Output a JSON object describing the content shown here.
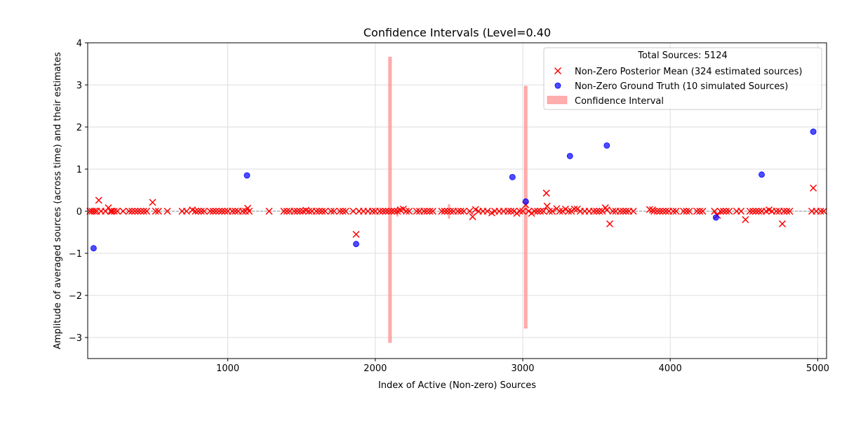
{
  "chart_data": {
    "type": "scatter",
    "title": "Confidence Intervals (Level=0.40",
    "xlabel": "Index of Active (Non-zero) Sources",
    "ylabel": "Amplitude of averaged sources (across time) and their estimates",
    "xlim": [
      50,
      5060
    ],
    "ylim": [
      -3.5,
      4.0
    ],
    "xticks": [
      1000,
      2000,
      3000,
      4000,
      5000
    ],
    "yticks": [
      -3,
      -2,
      -1,
      0,
      1,
      2,
      3,
      4
    ],
    "xtick_labels": [
      "1000",
      "2000",
      "3000",
      "4000",
      "5000"
    ],
    "ytick_labels": [
      "−3",
      "−2",
      "−1",
      "0",
      "1",
      "2",
      "3",
      "4"
    ],
    "grid": true,
    "zero_line": true,
    "legend": {
      "title": "Total Sources: 5124",
      "placement": "top-right",
      "entries": [
        {
          "label": "Non-Zero Posterior Mean (324 estimated sources)",
          "marker": "x",
          "color": "#ff0000"
        },
        {
          "label": "Non-Zero Ground Truth (10 simulated Sources)",
          "marker": "circle",
          "color": "#0000ff"
        },
        {
          "label": "Confidence Interval",
          "marker": "patch",
          "color": "#ff9999"
        }
      ]
    },
    "series": [
      {
        "name": "Non-Zero Posterior Mean (324 estimated sources)",
        "marker": "x",
        "color": "#ff0000",
        "points": [
          [
            65,
            0
          ],
          [
            80,
            0
          ],
          [
            95,
            0
          ],
          [
            110,
            0
          ],
          [
            125,
            0.26
          ],
          [
            140,
            0
          ],
          [
            170,
            0
          ],
          [
            190,
            0.08
          ],
          [
            205,
            0
          ],
          [
            215,
            0
          ],
          [
            230,
            0
          ],
          [
            250,
            0
          ],
          [
            290,
            0
          ],
          [
            330,
            0
          ],
          [
            350,
            0
          ],
          [
            370,
            0
          ],
          [
            390,
            0
          ],
          [
            410,
            0
          ],
          [
            430,
            0
          ],
          [
            450,
            0
          ],
          [
            490,
            0.21
          ],
          [
            510,
            0
          ],
          [
            530,
            0
          ],
          [
            590,
            0
          ],
          [
            690,
            0
          ],
          [
            720,
            0
          ],
          [
            760,
            0.03
          ],
          [
            780,
            0
          ],
          [
            800,
            0
          ],
          [
            820,
            0
          ],
          [
            840,
            0
          ],
          [
            880,
            0
          ],
          [
            900,
            0
          ],
          [
            920,
            0
          ],
          [
            940,
            0
          ],
          [
            960,
            0
          ],
          [
            980,
            0
          ],
          [
            1000,
            0
          ],
          [
            1030,
            0
          ],
          [
            1050,
            0
          ],
          [
            1070,
            0
          ],
          [
            1100,
            0
          ],
          [
            1120,
            0
          ],
          [
            1135,
            0.07
          ],
          [
            1145,
            0
          ],
          [
            1280,
            0
          ],
          [
            1380,
            0
          ],
          [
            1400,
            0
          ],
          [
            1420,
            0
          ],
          [
            1450,
            0
          ],
          [
            1470,
            0
          ],
          [
            1490,
            0
          ],
          [
            1510,
            0
          ],
          [
            1530,
            0.02
          ],
          [
            1550,
            0
          ],
          [
            1570,
            0
          ],
          [
            1600,
            0
          ],
          [
            1620,
            0
          ],
          [
            1640,
            0
          ],
          [
            1660,
            0
          ],
          [
            1700,
            0
          ],
          [
            1720,
            0
          ],
          [
            1760,
            0
          ],
          [
            1780,
            0
          ],
          [
            1800,
            0
          ],
          [
            1850,
            0
          ],
          [
            1870,
            -0.55
          ],
          [
            1890,
            0
          ],
          [
            1920,
            0
          ],
          [
            1950,
            0
          ],
          [
            1980,
            0
          ],
          [
            2000,
            0
          ],
          [
            2030,
            0
          ],
          [
            2050,
            0
          ],
          [
            2070,
            0
          ],
          [
            2090,
            0
          ],
          [
            2110,
            0
          ],
          [
            2130,
            0
          ],
          [
            2150,
            0
          ],
          [
            2170,
            0.03
          ],
          [
            2190,
            0.05
          ],
          [
            2210,
            0
          ],
          [
            2230,
            0
          ],
          [
            2280,
            0
          ],
          [
            2300,
            0
          ],
          [
            2330,
            0
          ],
          [
            2350,
            0
          ],
          [
            2370,
            0
          ],
          [
            2390,
            0
          ],
          [
            2450,
            0
          ],
          [
            2470,
            0
          ],
          [
            2490,
            0
          ],
          [
            2510,
            0
          ],
          [
            2530,
            0
          ],
          [
            2560,
            0
          ],
          [
            2580,
            0
          ],
          [
            2600,
            0
          ],
          [
            2640,
            0
          ],
          [
            2660,
            -0.13
          ],
          [
            2680,
            0.04
          ],
          [
            2700,
            0
          ],
          [
            2730,
            0
          ],
          [
            2760,
            0
          ],
          [
            2790,
            -0.04
          ],
          [
            2810,
            0
          ],
          [
            2840,
            0
          ],
          [
            2870,
            0
          ],
          [
            2900,
            0
          ],
          [
            2920,
            0
          ],
          [
            2940,
            0
          ],
          [
            2960,
            -0.05
          ],
          [
            2980,
            0
          ],
          [
            3000,
            0
          ],
          [
            3020,
            0.15
          ],
          [
            3040,
            0
          ],
          [
            3060,
            -0.05
          ],
          [
            3080,
            0
          ],
          [
            3100,
            0
          ],
          [
            3120,
            0
          ],
          [
            3140,
            0
          ],
          [
            3160,
            0.43
          ],
          [
            3165,
            0.12
          ],
          [
            3180,
            0
          ],
          [
            3200,
            0
          ],
          [
            3230,
            0.06
          ],
          [
            3250,
            0
          ],
          [
            3270,
            0
          ],
          [
            3290,
            0.05
          ],
          [
            3310,
            0
          ],
          [
            3330,
            0
          ],
          [
            3350,
            0.05
          ],
          [
            3370,
            0.05
          ],
          [
            3390,
            0
          ],
          [
            3420,
            0
          ],
          [
            3450,
            0
          ],
          [
            3480,
            0
          ],
          [
            3500,
            0
          ],
          [
            3520,
            0
          ],
          [
            3540,
            0
          ],
          [
            3560,
            0.08
          ],
          [
            3570,
            0.03
          ],
          [
            3590,
            -0.3
          ],
          [
            3610,
            0
          ],
          [
            3630,
            0
          ],
          [
            3660,
            0
          ],
          [
            3680,
            0
          ],
          [
            3700,
            0
          ],
          [
            3720,
            0
          ],
          [
            3750,
            0
          ],
          [
            3860,
            0.04
          ],
          [
            3880,
            0.03
          ],
          [
            3890,
            0
          ],
          [
            3910,
            0
          ],
          [
            3930,
            0
          ],
          [
            3950,
            0
          ],
          [
            3970,
            0
          ],
          [
            3990,
            0
          ],
          [
            4020,
            0
          ],
          [
            4040,
            0
          ],
          [
            4090,
            0
          ],
          [
            4110,
            0
          ],
          [
            4130,
            0
          ],
          [
            4180,
            0
          ],
          [
            4200,
            0
          ],
          [
            4220,
            0
          ],
          [
            4300,
            0
          ],
          [
            4320,
            -0.1
          ],
          [
            4340,
            0
          ],
          [
            4360,
            0
          ],
          [
            4380,
            0
          ],
          [
            4400,
            0
          ],
          [
            4450,
            0
          ],
          [
            4480,
            0
          ],
          [
            4510,
            -0.2
          ],
          [
            4540,
            0
          ],
          [
            4560,
            0
          ],
          [
            4580,
            0
          ],
          [
            4600,
            0
          ],
          [
            4620,
            0
          ],
          [
            4650,
            0
          ],
          [
            4670,
            0.03
          ],
          [
            4690,
            0
          ],
          [
            4720,
            0
          ],
          [
            4740,
            0
          ],
          [
            4760,
            -0.3
          ],
          [
            4770,
            0
          ],
          [
            4790,
            0
          ],
          [
            4810,
            0
          ],
          [
            4960,
            0
          ],
          [
            4970,
            0.55
          ],
          [
            4990,
            0
          ],
          [
            5020,
            0
          ],
          [
            5040,
            0
          ]
        ]
      },
      {
        "name": "Non-Zero Ground Truth (10 simulated Sources)",
        "marker": "circle",
        "color": "#0000ff",
        "points": [
          [
            90,
            -0.88
          ],
          [
            1130,
            0.85
          ],
          [
            1870,
            -0.78
          ],
          [
            2930,
            0.81
          ],
          [
            3020,
            0.23
          ],
          [
            3320,
            1.31
          ],
          [
            3570,
            1.56
          ],
          [
            4310,
            -0.15
          ],
          [
            4620,
            0.87
          ],
          [
            4970,
            1.89
          ]
        ]
      }
    ],
    "intervals": [
      {
        "x": 2100,
        "width": 20,
        "low": -3.12,
        "high": 3.66
      },
      {
        "x": 2150,
        "width": 10,
        "low": -0.12,
        "high": 0.08
      },
      {
        "x": 2500,
        "width": 10,
        "low": -0.17,
        "high": 0.16
      },
      {
        "x": 3020,
        "width": 20,
        "low": -2.78,
        "high": 2.97
      }
    ]
  }
}
